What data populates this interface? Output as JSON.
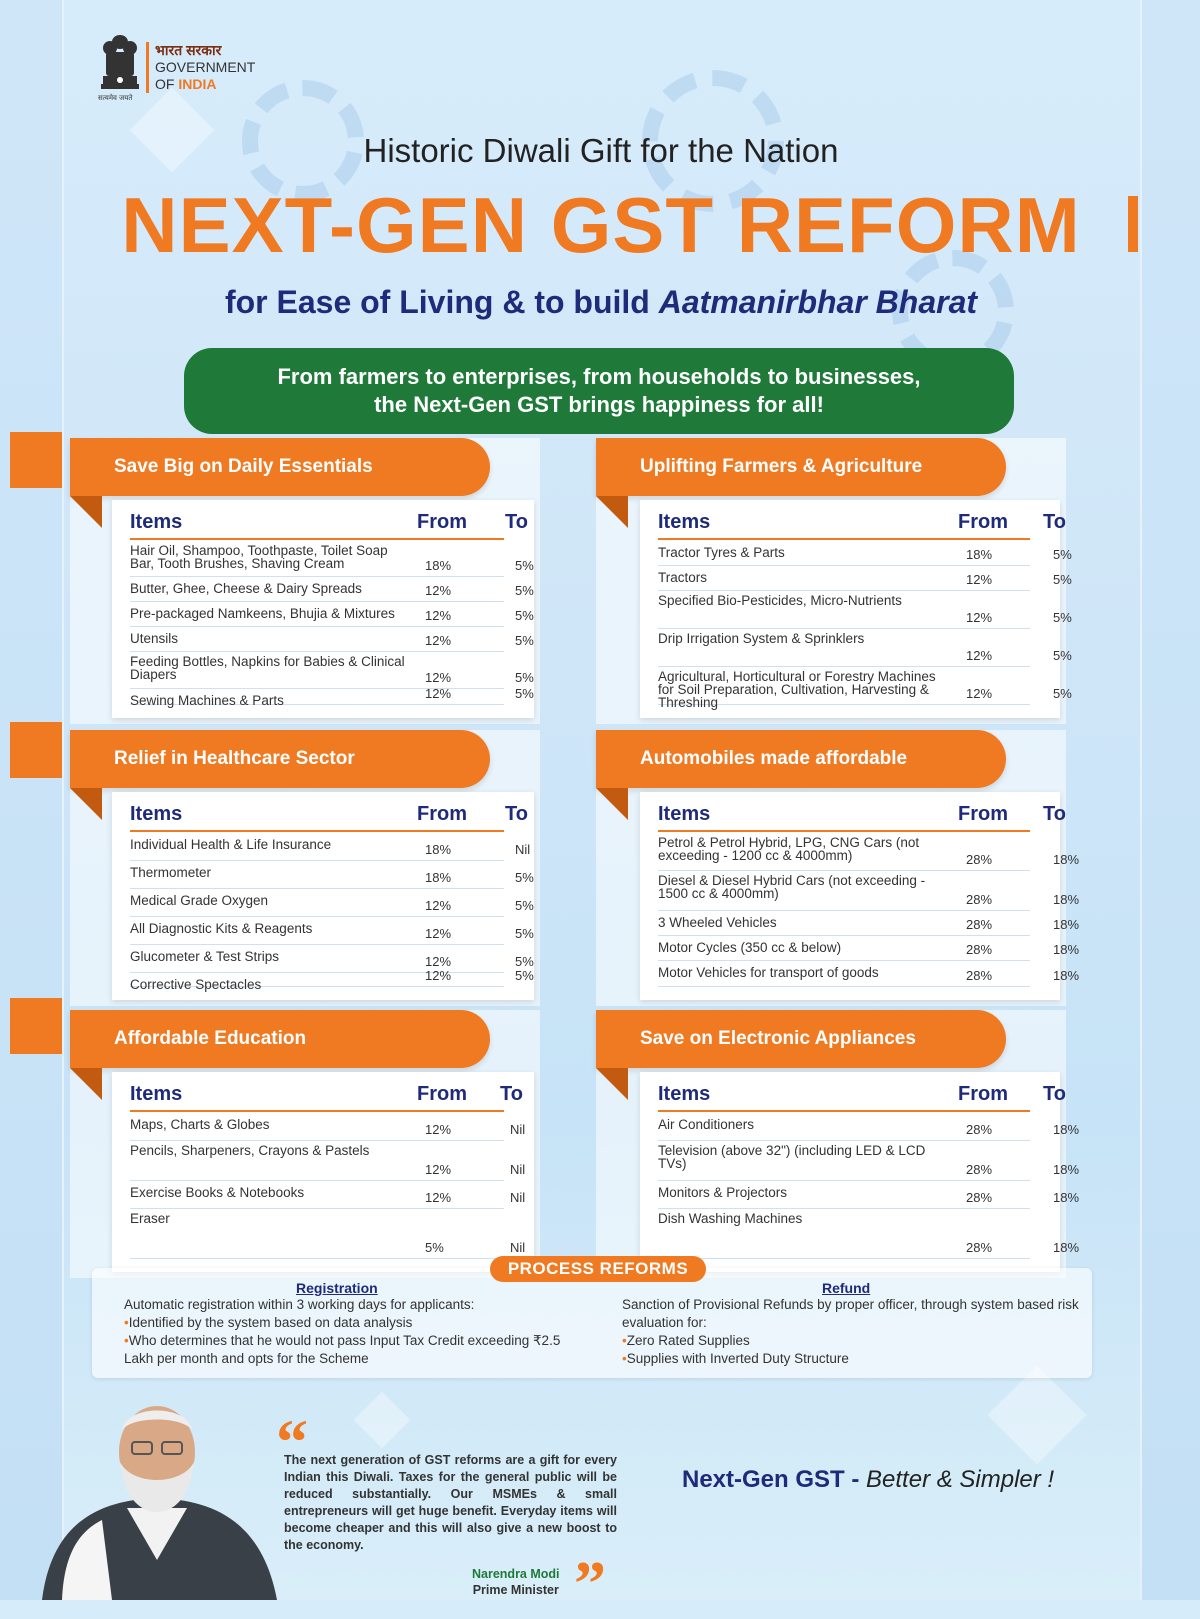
{
  "header": {
    "logo_line1": "भारत सरकार",
    "logo_line2": "GOVERNMENT",
    "logo_line3a": "OF ",
    "logo_line3b": "INDIA",
    "emblem_caption": "सत्यमेव जयते"
  },
  "kicker": "Historic Diwali Gift for the Nation",
  "headline": "NEXT-GEN GST REFORM",
  "tagline_prefix": "for Ease of Living & to build ",
  "tagline_italic": "Aatmanirbhar Bharat",
  "banner": {
    "line1": "From farmers to enterprises, from households to businesses,",
    "line2": "the Next-Gen GST brings happiness for all!"
  },
  "table_headers": {
    "items": "Items",
    "from": "From",
    "to": "To"
  },
  "sections": [
    {
      "title": "Save Big on Daily Essentials",
      "rows": [
        {
          "item": "Hair Oil, Shampoo, Toothpaste, Toilet Soap Bar, Tooth Brushes, Shaving Cream",
          "from": "18%",
          "to": "5%"
        },
        {
          "item": "Butter, Ghee, Cheese & Dairy Spreads",
          "from": "12%",
          "to": "5%"
        },
        {
          "item": "Pre-packaged Namkeens, Bhujia & Mixtures",
          "from": "12%",
          "to": "5%"
        },
        {
          "item": "Utensils",
          "from": "12%",
          "to": "5%"
        },
        {
          "item": "Feeding Bottles, Napkins for Babies & Clinical Diapers",
          "from": "12%",
          "to": "5%"
        },
        {
          "item": "Sewing Machines & Parts",
          "from": "12%",
          "to": "5%"
        }
      ]
    },
    {
      "title": "Uplifting Farmers & Agriculture",
      "rows": [
        {
          "item": "Tractor Tyres & Parts",
          "from": "18%",
          "to": "5%"
        },
        {
          "item": "Tractors",
          "from": "12%",
          "to": "5%"
        },
        {
          "item": "Specified Bio-Pesticides, Micro-Nutrients",
          "from": "12%",
          "to": "5%"
        },
        {
          "item": "Drip Irrigation System & Sprinklers",
          "from": "12%",
          "to": "5%"
        },
        {
          "item": "Agricultural, Horticultural or Forestry Machines for Soil Preparation, Cultivation, Harvesting & Threshing",
          "from": "12%",
          "to": "5%"
        }
      ]
    },
    {
      "title": "Relief in Healthcare Sector",
      "rows": [
        {
          "item": "Individual Health & Life Insurance",
          "from": "18%",
          "to": "Nil"
        },
        {
          "item": "Thermometer",
          "from": "18%",
          "to": "5%"
        },
        {
          "item": "Medical Grade Oxygen",
          "from": "12%",
          "to": "5%"
        },
        {
          "item": "All Diagnostic Kits & Reagents",
          "from": "12%",
          "to": "5%"
        },
        {
          "item": "Glucometer & Test Strips",
          "from": "12%",
          "to": "5%"
        },
        {
          "item": "Corrective Spectacles",
          "from": "12%",
          "to": "5%"
        }
      ]
    },
    {
      "title": "Automobiles made affordable",
      "rows": [
        {
          "item": "Petrol & Petrol Hybrid, LPG, CNG Cars (not exceeding - 1200 cc & 4000mm)",
          "from": "28%",
          "to": "18%"
        },
        {
          "item": "Diesel & Diesel Hybrid Cars (not exceeding - 1500 cc & 4000mm)",
          "from": "28%",
          "to": "18%"
        },
        {
          "item": "3 Wheeled Vehicles",
          "from": "28%",
          "to": "18%"
        },
        {
          "item": "Motor Cycles (350 cc & below)",
          "from": "28%",
          "to": "18%"
        },
        {
          "item": "Motor Vehicles for transport of goods",
          "from": "28%",
          "to": "18%"
        }
      ]
    },
    {
      "title": "Affordable Education",
      "rows": [
        {
          "item": "Maps, Charts & Globes",
          "from": "12%",
          "to": "Nil"
        },
        {
          "item": "Pencils, Sharpeners, Crayons & Pastels",
          "from": "12%",
          "to": "Nil"
        },
        {
          "item": "Exercise Books & Notebooks",
          "from": "12%",
          "to": "Nil"
        },
        {
          "item": "Eraser",
          "from": "5%",
          "to": "Nil"
        }
      ]
    },
    {
      "title": "Save on Electronic Appliances",
      "rows": [
        {
          "item": "Air Conditioners",
          "from": "28%",
          "to": "18%"
        },
        {
          "item": "Television (above 32\") (including LED & LCD TVs)",
          "from": "28%",
          "to": "18%"
        },
        {
          "item": "Monitors & Projectors",
          "from": "28%",
          "to": "18%"
        },
        {
          "item": "Dish Washing Machines",
          "from": "28%",
          "to": "18%"
        }
      ]
    }
  ],
  "process_reforms": {
    "title": "PROCESS REFORMS",
    "registration": {
      "heading": "Registration",
      "intro": "Automatic registration within 3 working days for applicants:",
      "bullets": [
        "Identified by the system based on data analysis",
        "Who determines that he would not pass Input Tax Credit exceeding ₹2.5 Lakh per month and opts for the Scheme"
      ]
    },
    "refund": {
      "heading": "Refund",
      "intro": "Sanction of Provisional Refunds by proper officer, through system based risk evaluation for:",
      "bullets": [
        "Zero Rated Supplies",
        "Supplies with Inverted Duty Structure"
      ]
    }
  },
  "quote": {
    "text": "The next generation of GST reforms are a gift for every Indian this Diwali. Taxes for the general public will be reduced substantially. Our MSMEs & small entrepreneurs will get huge benefit. Everyday items will become cheaper and this will also give a new boost to the economy.",
    "name": "Narendra Modi",
    "role": "Prime Minister"
  },
  "slogan_bold": "Next-Gen GST - ",
  "slogan_italic": "Better & Simpler !",
  "colors": {
    "accent": "#f07a22",
    "navy": "#1f2a7a",
    "green": "#1f7a3a"
  }
}
